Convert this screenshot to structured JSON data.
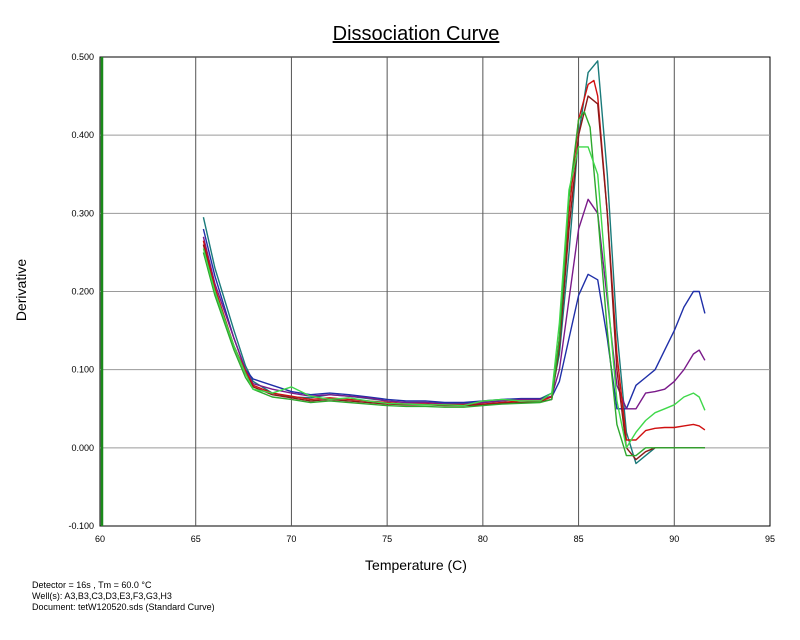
{
  "chart_data": {
    "type": "line",
    "title": "Dissociation Curve",
    "xlabel": "Temperature (C)",
    "ylabel": "Derivative",
    "xlim": [
      60,
      95
    ],
    "ylim": [
      -0.1,
      0.5
    ],
    "xticks": [
      60,
      65,
      70,
      75,
      80,
      85,
      90,
      95
    ],
    "xtick_labels": [
      "60",
      "65",
      "70",
      "75",
      "80",
      "85",
      "90",
      "95"
    ],
    "yticks": [
      -0.1,
      0.0,
      0.1,
      0.2,
      0.3,
      0.4,
      0.5
    ],
    "ytick_labels": [
      "-0.100",
      "0.000",
      "0.100",
      "0.200",
      "0.300",
      "0.400",
      "0.500"
    ],
    "grid": true,
    "series": [
      {
        "color": "#1a7a7a",
        "x": [
          65.4,
          66.0,
          67.0,
          67.6,
          68.0,
          69.0,
          70.0,
          71.0,
          72.0,
          73.0,
          74.0,
          75.0,
          76.0,
          77.0,
          78.0,
          79.0,
          80.0,
          81.0,
          82.0,
          83.0,
          83.6,
          84.0,
          84.5,
          85.0,
          85.5,
          86.0,
          86.5,
          87.0,
          87.5,
          88.0,
          88.5,
          89.0,
          90.0,
          91.0,
          91.6
        ],
        "y": [
          0.295,
          0.23,
          0.15,
          0.105,
          0.085,
          0.07,
          0.065,
          0.064,
          0.068,
          0.066,
          0.063,
          0.06,
          0.058,
          0.058,
          0.057,
          0.057,
          0.058,
          0.06,
          0.062,
          0.063,
          0.07,
          0.12,
          0.25,
          0.4,
          0.48,
          0.495,
          0.35,
          0.15,
          0.02,
          -0.02,
          -0.01,
          0.0,
          0.0,
          0.0,
          0.0
        ]
      },
      {
        "color": "#1f2fa8",
        "x": [
          65.4,
          66.0,
          67.0,
          67.6,
          68.0,
          69.0,
          70.0,
          71.0,
          72.0,
          73.0,
          74.0,
          75.0,
          76.0,
          77.0,
          78.0,
          79.0,
          80.0,
          81.0,
          82.0,
          83.0,
          83.6,
          84.0,
          84.5,
          85.0,
          85.5,
          86.0,
          86.5,
          87.0,
          87.5,
          88.0,
          88.5,
          89.0,
          89.5,
          90.0,
          90.5,
          91.0,
          91.3,
          91.6
        ],
        "y": [
          0.28,
          0.22,
          0.14,
          0.1,
          0.088,
          0.08,
          0.072,
          0.068,
          0.07,
          0.068,
          0.065,
          0.062,
          0.06,
          0.06,
          0.058,
          0.058,
          0.06,
          0.062,
          0.063,
          0.063,
          0.065,
          0.085,
          0.14,
          0.195,
          0.222,
          0.215,
          0.14,
          0.05,
          0.05,
          0.08,
          0.09,
          0.1,
          0.125,
          0.15,
          0.18,
          0.2,
          0.2,
          0.172
        ]
      },
      {
        "color": "#7a1a8a",
        "x": [
          65.4,
          66.0,
          67.0,
          67.6,
          68.0,
          69.0,
          70.0,
          71.0,
          72.0,
          73.0,
          74.0,
          75.0,
          76.0,
          77.0,
          78.0,
          79.0,
          80.0,
          81.0,
          82.0,
          83.0,
          83.6,
          84.0,
          84.5,
          85.0,
          85.5,
          86.0,
          86.5,
          87.0,
          87.5,
          88.0,
          88.5,
          89.0,
          89.5,
          90.0,
          90.5,
          91.0,
          91.3,
          91.6
        ],
        "y": [
          0.27,
          0.21,
          0.14,
          0.1,
          0.082,
          0.075,
          0.07,
          0.066,
          0.068,
          0.066,
          0.064,
          0.06,
          0.058,
          0.058,
          0.056,
          0.056,
          0.058,
          0.06,
          0.062,
          0.062,
          0.066,
          0.1,
          0.19,
          0.28,
          0.318,
          0.3,
          0.19,
          0.08,
          0.05,
          0.05,
          0.07,
          0.072,
          0.075,
          0.085,
          0.1,
          0.12,
          0.125,
          0.112
        ]
      },
      {
        "color": "#d01010",
        "x": [
          65.4,
          66.0,
          67.0,
          67.6,
          68.0,
          69.0,
          70.0,
          71.0,
          72.0,
          73.0,
          74.0,
          75.0,
          76.0,
          77.0,
          78.0,
          79.0,
          80.0,
          81.0,
          82.0,
          83.0,
          83.6,
          84.0,
          84.5,
          85.0,
          85.5,
          85.8,
          86.0,
          86.5,
          87.0,
          87.5,
          88.0,
          88.5,
          89.0,
          89.5,
          90.0,
          90.5,
          91.0,
          91.3,
          91.6
        ],
        "y": [
          0.265,
          0.205,
          0.13,
          0.098,
          0.08,
          0.07,
          0.066,
          0.062,
          0.064,
          0.062,
          0.06,
          0.058,
          0.056,
          0.056,
          0.055,
          0.055,
          0.056,
          0.058,
          0.06,
          0.06,
          0.065,
          0.14,
          0.3,
          0.42,
          0.465,
          0.47,
          0.45,
          0.3,
          0.12,
          0.01,
          0.01,
          0.022,
          0.025,
          0.026,
          0.026,
          0.028,
          0.03,
          0.028,
          0.023
        ]
      },
      {
        "color": "#8a1a1a",
        "x": [
          65.4,
          66.0,
          67.0,
          67.6,
          68.0,
          69.0,
          70.0,
          71.0,
          72.0,
          73.0,
          74.0,
          75.0,
          76.0,
          77.0,
          78.0,
          79.0,
          80.0,
          81.0,
          82.0,
          83.0,
          83.6,
          84.0,
          84.5,
          85.0,
          85.5,
          86.0,
          86.5,
          87.0,
          87.5,
          88.0,
          88.5,
          89.0,
          90.0,
          91.0,
          91.6
        ],
        "y": [
          0.26,
          0.2,
          0.13,
          0.095,
          0.078,
          0.068,
          0.064,
          0.06,
          0.062,
          0.06,
          0.058,
          0.056,
          0.055,
          0.055,
          0.054,
          0.054,
          0.055,
          0.057,
          0.058,
          0.059,
          0.062,
          0.13,
          0.28,
          0.4,
          0.45,
          0.44,
          0.3,
          0.1,
          0.0,
          -0.015,
          -0.005,
          0.0,
          0.0,
          0.0,
          0.0
        ]
      },
      {
        "color": "#2ea82e",
        "x": [
          65.4,
          66.0,
          67.0,
          67.6,
          68.0,
          69.0,
          70.0,
          71.0,
          72.0,
          73.0,
          74.0,
          75.0,
          76.0,
          77.0,
          78.0,
          79.0,
          80.0,
          81.0,
          82.0,
          83.0,
          83.6,
          84.0,
          84.5,
          85.0,
          85.3,
          85.6,
          86.0,
          86.5,
          87.0,
          87.5,
          88.0,
          88.5,
          89.0,
          90.0,
          91.0,
          91.6
        ],
        "y": [
          0.25,
          0.195,
          0.125,
          0.09,
          0.075,
          0.065,
          0.062,
          0.058,
          0.06,
          0.058,
          0.056,
          0.054,
          0.053,
          0.053,
          0.052,
          0.052,
          0.054,
          0.056,
          0.057,
          0.058,
          0.062,
          0.14,
          0.32,
          0.42,
          0.43,
          0.41,
          0.3,
          0.15,
          0.03,
          -0.01,
          -0.01,
          0.0,
          0.0,
          0.0,
          0.0,
          0.0
        ]
      },
      {
        "color": "#3fd84a",
        "x": [
          65.4,
          66.0,
          67.0,
          67.6,
          68.0,
          69.0,
          70.0,
          71.0,
          72.0,
          73.0,
          74.0,
          75.0,
          76.0,
          77.0,
          78.0,
          79.0,
          80.0,
          81.0,
          82.0,
          83.0,
          83.6,
          84.0,
          84.5,
          85.0,
          85.5,
          86.0,
          86.5,
          87.0,
          87.5,
          88.0,
          88.5,
          89.0,
          89.5,
          90.0,
          90.5,
          91.0,
          91.3,
          91.6
        ],
        "y": [
          0.255,
          0.2,
          0.13,
          0.095,
          0.075,
          0.07,
          0.078,
          0.066,
          0.062,
          0.064,
          0.06,
          0.057,
          0.056,
          0.055,
          0.055,
          0.054,
          0.06,
          0.062,
          0.06,
          0.06,
          0.07,
          0.16,
          0.33,
          0.385,
          0.385,
          0.35,
          0.2,
          0.06,
          0.0,
          0.02,
          0.035,
          0.045,
          0.05,
          0.055,
          0.065,
          0.07,
          0.065,
          0.048
        ]
      }
    ]
  },
  "footer": {
    "line1": "Detector = 16s , Tm = 60.0 °C",
    "line2": "Well(s): A3,B3,C3,D3,E3,F3,G3,H3",
    "line3": "Document: tetW120520.sds (Standard Curve)"
  }
}
